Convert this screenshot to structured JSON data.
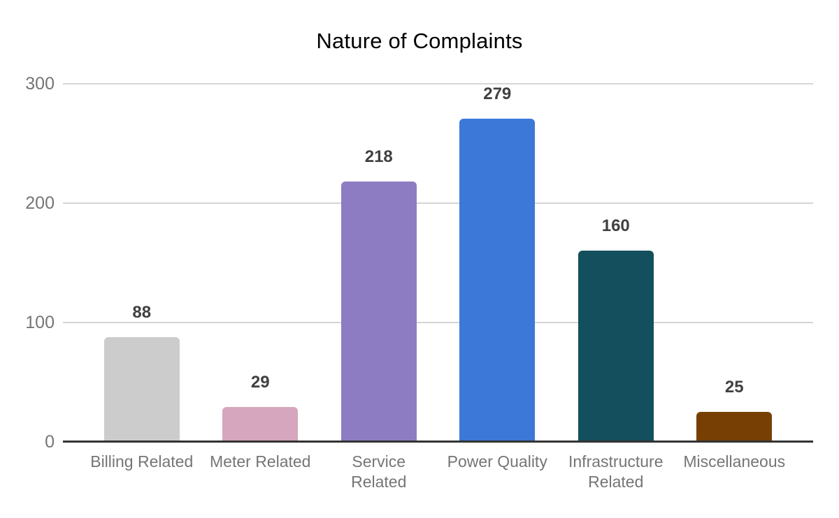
{
  "chart_data": {
    "type": "bar",
    "title": "Nature of Complaints",
    "xlabel": "",
    "ylabel": "",
    "categories": [
      "Billing Related",
      "Meter Related",
      "Service Related",
      "Power Quality",
      "Infrastructure Related",
      "Miscellaneous"
    ],
    "category_lines": [
      [
        "Billing Related"
      ],
      [
        "Meter Related"
      ],
      [
        "Service",
        "Related"
      ],
      [
        "Power Quality"
      ],
      [
        "Infrastructure",
        "Related"
      ],
      [
        "Miscellaneous"
      ]
    ],
    "values": [
      88,
      29,
      218,
      279,
      160,
      25
    ],
    "value_labels": [
      "88",
      "29",
      "218",
      "279",
      "160",
      "25"
    ],
    "bar_colors": [
      "#cccccc",
      "#d5a6bd",
      "#8e7cc3",
      "#3c78d8",
      "#134f5c",
      "#783f04"
    ],
    "ylim": [
      0,
      300
    ],
    "yticks": [
      0,
      100,
      200,
      300
    ],
    "ytick_labels": [
      "0",
      "100",
      "200",
      "300"
    ],
    "grid": true,
    "legend": "none",
    "colors": {
      "title": "#000000",
      "value_label": "#404040",
      "axis_tick_label": "#757575",
      "gridline": "#d5d5d5",
      "axis_line": "#333333",
      "background": "#ffffff"
    }
  }
}
